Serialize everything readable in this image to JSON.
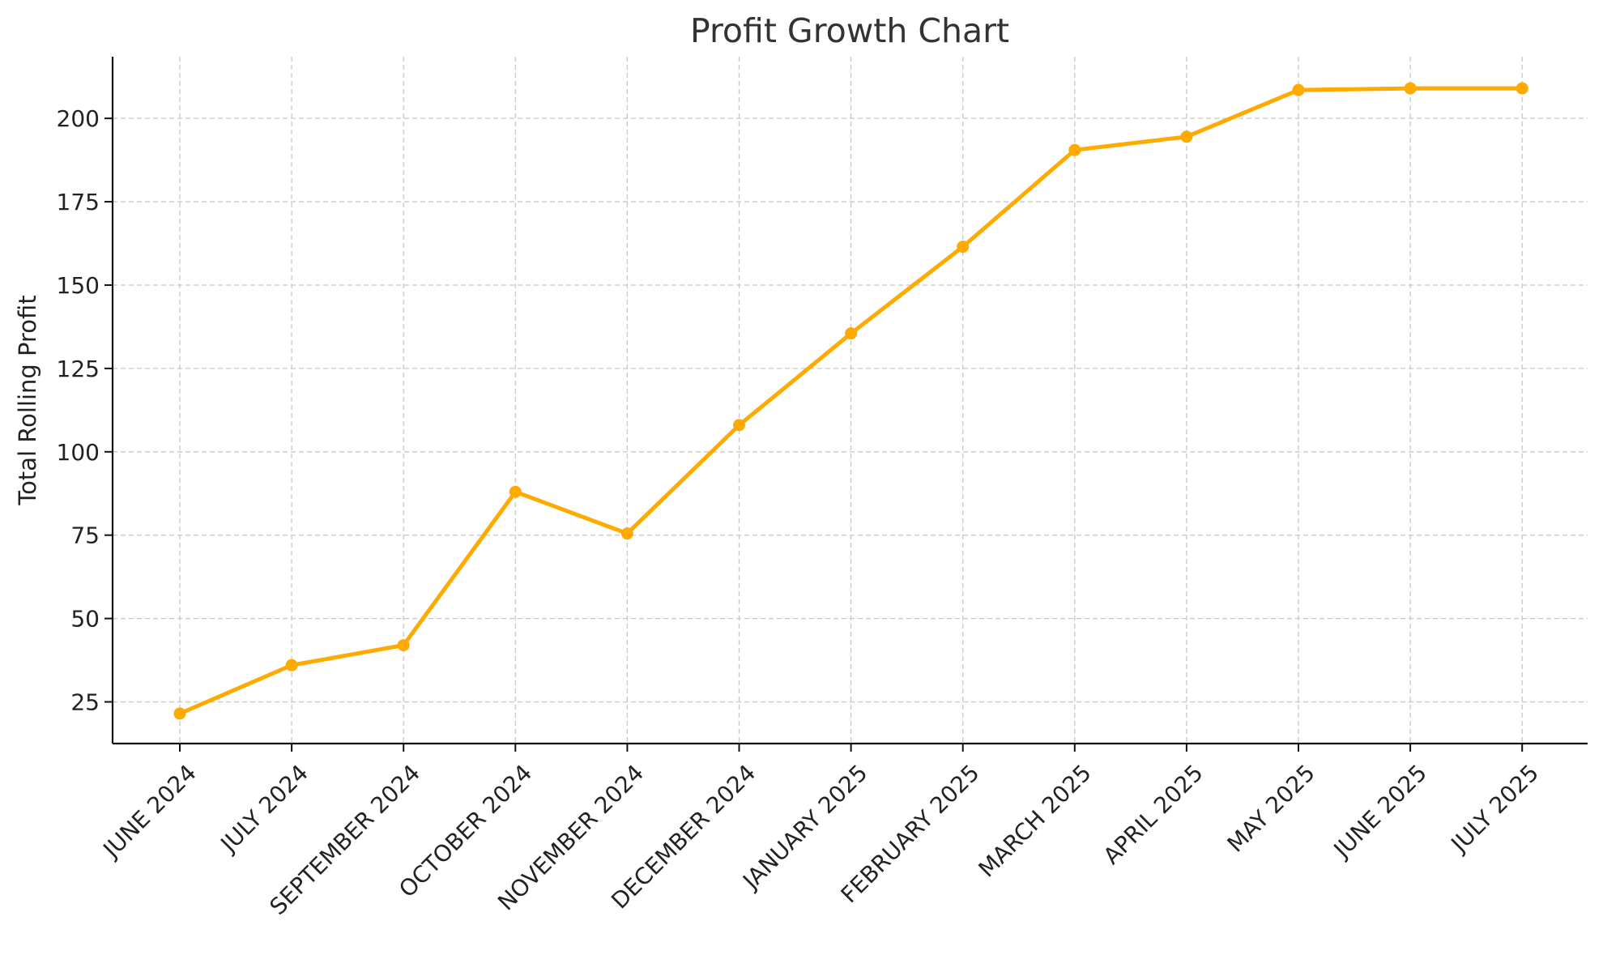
{
  "chart_data": {
    "type": "line",
    "title": "Profit Growth Chart",
    "xlabel": "",
    "ylabel": "Total Rolling Profit",
    "categories": [
      "JUNE 2024",
      "JULY 2024",
      "SEPTEMBER 2024",
      "OCTOBER 2024",
      "NOVEMBER 2024",
      "DECEMBER 2024",
      "JANUARY 2025",
      "FEBRUARY 2025",
      "MARCH 2025",
      "APRIL 2025",
      "MAY 2025",
      "JUNE 2025",
      "JULY 2025"
    ],
    "series": [
      {
        "values": [
          21.5,
          36,
          42,
          88,
          75.5,
          108,
          135.5,
          161.5,
          190.5,
          194.5,
          208.5,
          209,
          209
        ],
        "color": "#FFAA00"
      }
    ],
    "ylim": [
      12.5,
      218.5
    ],
    "yticks": [
      25,
      50,
      75,
      100,
      125,
      150,
      175,
      200
    ],
    "grid": true,
    "legend": "none"
  }
}
